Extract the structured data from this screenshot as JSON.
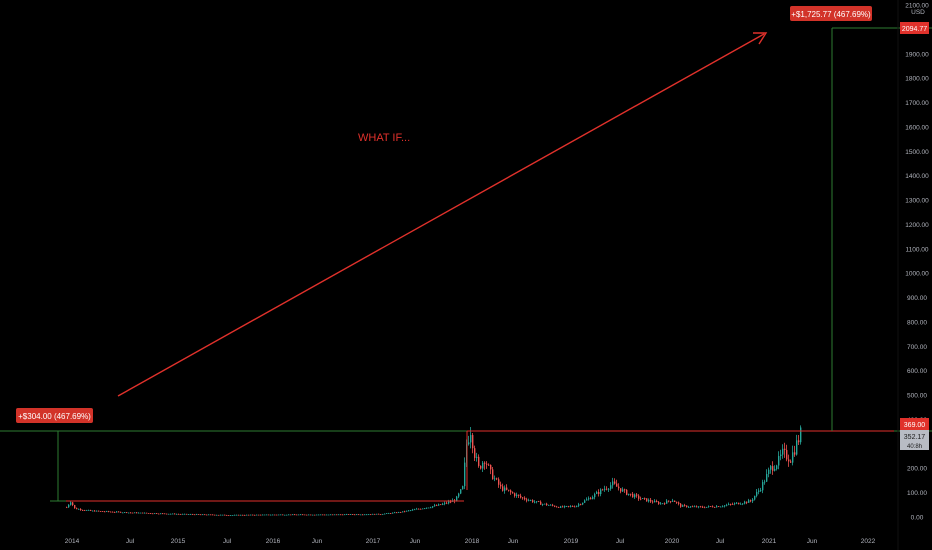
{
  "chart_data": {
    "type": "candlestick",
    "price_axis": {
      "currency": "USD",
      "ticks": [
        "2100.00",
        "2000.00",
        "1900.00",
        "1800.00",
        "1700.00",
        "1600.00",
        "1500.00",
        "1400.00",
        "1300.00",
        "1200.00",
        "1100.00",
        "1000.00",
        "900.00",
        "800.00",
        "700.00",
        "600.00",
        "500.00",
        "400.00",
        "300.00",
        "200.00",
        "100.00",
        "0.00"
      ]
    },
    "time_axis": {
      "ticks": [
        "2014",
        "Jul",
        "2015",
        "Jul",
        "2016",
        "Jun",
        "2017",
        "Jun",
        "2018",
        "Jun",
        "2019",
        "Jul",
        "2020",
        "Jul",
        "2021",
        "Jun",
        "2022"
      ]
    },
    "annotation_text": "WHAT IF...",
    "price_labels": {
      "target": "2094.77",
      "level": "369.00",
      "current": "352.17",
      "countdown": "40:8h"
    },
    "measure_labels": {
      "left": "+$304.00 (467.69%)",
      "right": "+$1,725.77 (467.69%)"
    },
    "series_summary": {
      "start_low": 65,
      "peak_2018": 369,
      "current": 352.17,
      "projected_target": 2094.77
    },
    "colors": {
      "up": "#26a69a",
      "down": "#ef5350",
      "accent_red": "#e0312b",
      "measure_green": "#2e7d32",
      "axis_text": "#b2b5be"
    }
  }
}
